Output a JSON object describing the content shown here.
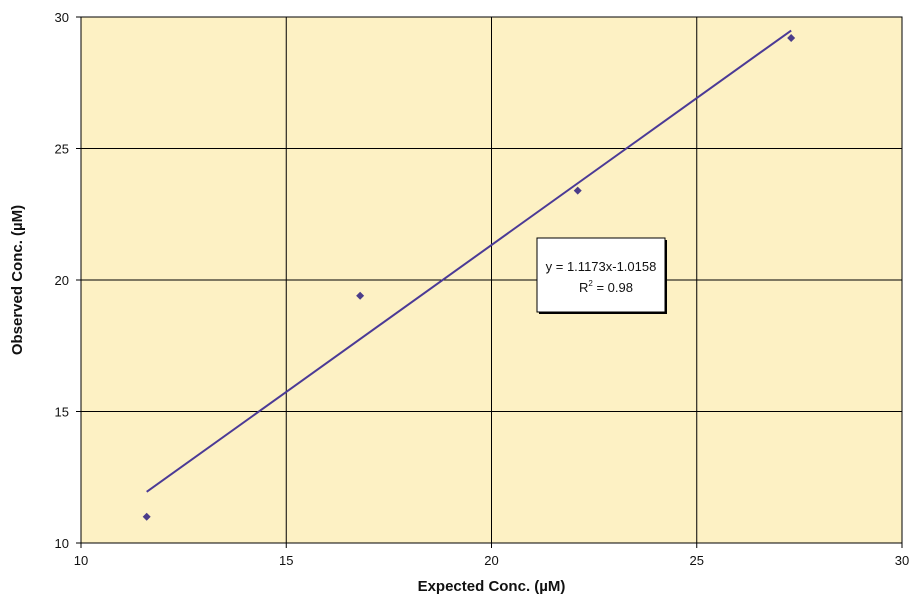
{
  "chart_data": {
    "type": "scatter",
    "xlabel": "Expected Conc. (µM)",
    "ylabel": "Observed Conc. (µM)",
    "xlim": [
      10,
      30
    ],
    "ylim": [
      10,
      30
    ],
    "xticks": [
      "10",
      "15",
      "20",
      "25",
      "30"
    ],
    "yticks": [
      "10",
      "15",
      "20",
      "25",
      "30"
    ],
    "grid": true,
    "points": [
      {
        "x": 11.6,
        "y": 11.0
      },
      {
        "x": 16.8,
        "y": 19.4
      },
      {
        "x": 22.1,
        "y": 23.4
      },
      {
        "x": 27.3,
        "y": 29.2
      }
    ],
    "trendline": {
      "slope": 1.1173,
      "intercept": -1.0158,
      "x_start": 11.6,
      "x_end": 27.3,
      "equation": "y = 1.1173x-1.0158",
      "r2_prefix": "R",
      "r2_exp": "2",
      "r2_value": " = 0.98"
    },
    "colors": {
      "plot_bg": "#fdf1c4",
      "point": "#4b3d8a",
      "line": "#4b3a96",
      "grid": "#000000"
    }
  }
}
